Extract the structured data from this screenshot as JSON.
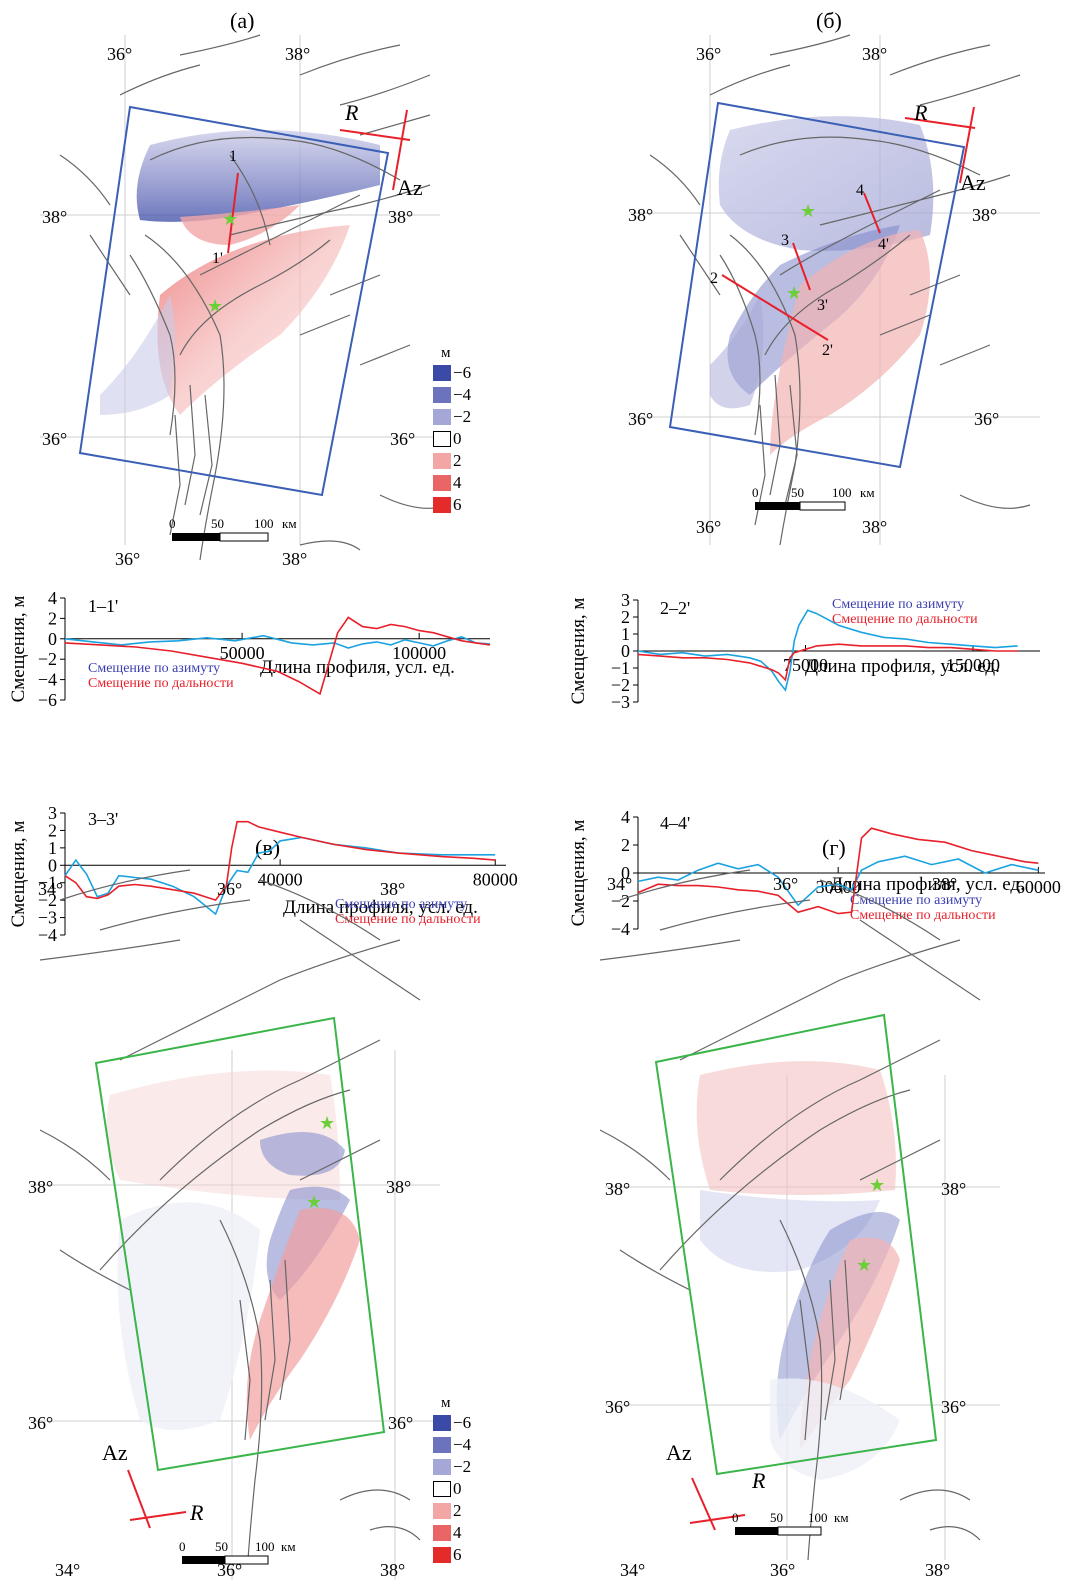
{
  "panel_labels": {
    "a": "(а)",
    "b": "(б)",
    "v": "(в)",
    "g": "(г)"
  },
  "legend": {
    "unit": "м",
    "entries": [
      {
        "label": "−6",
        "color": "#3a4aa6"
      },
      {
        "label": "−4",
        "color": "#6b73bc"
      },
      {
        "label": "−2",
        "color": "#a5a8d6"
      },
      {
        "label": "0",
        "color": "#ffffff"
      },
      {
        "label": "2",
        "color": "#f3a6a6"
      },
      {
        "label": "4",
        "color": "#ea6565"
      },
      {
        "label": "6",
        "color": "#e52a2a"
      }
    ]
  },
  "maps": {
    "a": {
      "lon_labels": [
        "36°",
        "38°"
      ],
      "lat_labels": [
        "38°",
        "36°"
      ],
      "scale": {
        "ticks": [
          "0",
          "50",
          "100"
        ],
        "unit": "км"
      },
      "R": "R",
      "Az": "Az",
      "profile_labels": [
        "1",
        "1'"
      ],
      "frame_color": "#3b5fb5"
    },
    "b": {
      "lon_labels": [
        "36°",
        "38°"
      ],
      "lat_labels": [
        "38°",
        "36°"
      ],
      "scale": {
        "ticks": [
          "0",
          "50",
          "100"
        ],
        "unit": "км"
      },
      "R": "R",
      "Az": "Az",
      "profile_labels": [
        "2",
        "2'",
        "3",
        "3'",
        "4",
        "4'"
      ],
      "frame_color": "#3b5fb5"
    },
    "v": {
      "lon_labels": [
        "34°",
        "36°",
        "38°"
      ],
      "lat_labels": [
        "38°",
        "36°"
      ],
      "scale": {
        "ticks": [
          "0",
          "50",
          "100"
        ],
        "unit": "км"
      },
      "R": "R",
      "Az": "Az",
      "frame_color": "#3bb54a"
    },
    "g": {
      "lon_labels": [
        "34°",
        "36°",
        "38°"
      ],
      "lat_labels": [
        "38°",
        "36°"
      ],
      "scale": {
        "ticks": [
          "0",
          "50",
          "100"
        ],
        "unit": "км"
      },
      "R": "R",
      "Az": "Az",
      "frame_color": "#3bb54a"
    }
  },
  "chart_data": [
    {
      "type": "line",
      "profile": "1–1'",
      "xlabel": "Длина профиля, усл. ед.",
      "ylabel": "Смещения, м",
      "xlim": [
        0,
        120000
      ],
      "ylim": [
        -6,
        4
      ],
      "xticks": [
        50000,
        100000
      ],
      "yticks": [
        -6,
        -4,
        -2,
        0,
        2,
        4
      ],
      "legend_position": "bottom-left",
      "series": [
        {
          "name": "Смещение по азимуту",
          "color": "#1aa3e0",
          "x": [
            0,
            8000,
            16000,
            24000,
            32000,
            40000,
            48000,
            56000,
            64000,
            70000,
            76000,
            80000,
            84000,
            88000,
            92000,
            96000,
            100000,
            104000,
            108000,
            112000,
            116000,
            120000
          ],
          "y": [
            0,
            -0.3,
            -0.6,
            -0.3,
            -0.2,
            0.1,
            -0.2,
            0.3,
            -0.4,
            -0.6,
            -0.4,
            -0.9,
            -0.5,
            -0.3,
            -0.6,
            -0.1,
            -0.4,
            -0.7,
            -0.2,
            0.2,
            -0.4,
            -0.5
          ]
        },
        {
          "name": "Смещение по дальности",
          "color": "#e8202a",
          "x": [
            0,
            10000,
            20000,
            30000,
            40000,
            50000,
            60000,
            66000,
            70000,
            72000,
            74000,
            77000,
            80000,
            84000,
            88000,
            92000,
            96000,
            100000,
            104000,
            108000,
            112000,
            116000,
            120000
          ],
          "y": [
            -0.4,
            -0.6,
            -0.8,
            -1.2,
            -1.8,
            -2.4,
            -3.2,
            -4.2,
            -5.0,
            -5.4,
            -3.0,
            0.6,
            2.1,
            1.2,
            1.0,
            1.4,
            1.2,
            0.8,
            0.6,
            0.2,
            -0.2,
            -0.4,
            -0.6
          ]
        }
      ]
    },
    {
      "type": "line",
      "profile": "2–2'",
      "xlabel": "Длина профиля, усл. ед.",
      "ylabel": "Смещения, м",
      "xlim": [
        0,
        180000
      ],
      "ylim": [
        -3,
        3
      ],
      "xticks": [
        75000,
        150000
      ],
      "yticks": [
        -3,
        -2,
        -1,
        0,
        1,
        2,
        3
      ],
      "legend_position": "top-right",
      "series": [
        {
          "name": "Смещение по азимуту",
          "color": "#1aa3e0",
          "x": [
            0,
            10000,
            20000,
            30000,
            40000,
            50000,
            55000,
            60000,
            63000,
            66000,
            68000,
            70000,
            72000,
            76000,
            80000,
            90000,
            100000,
            110000,
            120000,
            130000,
            140000,
            150000,
            160000,
            170000
          ],
          "y": [
            0,
            -0.2,
            -0.1,
            -0.3,
            -0.2,
            -0.4,
            -0.6,
            -1.2,
            -1.8,
            -2.3,
            -1.2,
            0.6,
            1.5,
            2.4,
            2.2,
            1.5,
            1.1,
            0.8,
            0.7,
            0.5,
            0.4,
            0.3,
            0.2,
            0.3
          ]
        },
        {
          "name": "Смещение по дальности",
          "color": "#e8202a",
          "x": [
            0,
            10000,
            20000,
            30000,
            40000,
            50000,
            55000,
            60000,
            63000,
            66000,
            68000,
            70000,
            75000,
            80000,
            90000,
            100000,
            110000,
            120000,
            130000,
            140000,
            150000,
            160000,
            170000
          ],
          "y": [
            -0.2,
            -0.3,
            -0.4,
            -0.4,
            -0.5,
            -0.7,
            -0.9,
            -1.1,
            -1.3,
            -1.7,
            -0.4,
            -0.1,
            0.1,
            0.3,
            0.4,
            0.3,
            0.3,
            0.3,
            0.2,
            0.2,
            0.1,
            0.0,
            0.0
          ]
        }
      ]
    },
    {
      "type": "line",
      "profile": "3–3'",
      "xlabel": "Длина профиля, усл. ед.",
      "ylabel": "Смещения, м",
      "xlim": [
        0,
        82000
      ],
      "ylim": [
        -4,
        3
      ],
      "xticks": [
        40000,
        80000
      ],
      "yticks": [
        -4,
        -3,
        -2,
        -1,
        0,
        1,
        2,
        3
      ],
      "legend_position": "bottom-right",
      "series": [
        {
          "name": "Смещение по азимуту",
          "color": "#1aa3e0",
          "x": [
            0,
            2000,
            4000,
            6000,
            8000,
            10000,
            13000,
            16000,
            20000,
            24000,
            28000,
            30000,
            32000,
            34000,
            36000,
            38000,
            40000,
            44000,
            50000,
            56000,
            62000,
            70000,
            76000,
            80000
          ],
          "y": [
            -0.6,
            0.3,
            -0.5,
            -1.8,
            -1.6,
            -0.6,
            -0.7,
            -0.8,
            -1.2,
            -1.8,
            -2.8,
            -1.2,
            -0.3,
            -0.4,
            0.7,
            0.8,
            1.4,
            1.6,
            1.2,
            1.0,
            0.7,
            0.6,
            0.6,
            0.6
          ]
        },
        {
          "name": "Смещение по дальности",
          "color": "#e8202a",
          "x": [
            0,
            2000,
            4000,
            6000,
            8000,
            10000,
            13000,
            16000,
            20000,
            24000,
            28000,
            30000,
            31000,
            32000,
            34000,
            36000,
            40000,
            44000,
            50000,
            56000,
            62000,
            70000,
            76000,
            80000
          ],
          "y": [
            -0.6,
            -1.0,
            -1.8,
            -1.9,
            -1.7,
            -1.2,
            -1.1,
            -1.2,
            -1.4,
            -1.6,
            -2.0,
            -1.2,
            1.0,
            2.5,
            2.5,
            2.2,
            1.9,
            1.6,
            1.2,
            0.9,
            0.7,
            0.5,
            0.4,
            0.3
          ]
        }
      ]
    },
    {
      "type": "line",
      "profile": "4–4'",
      "xlabel": "Длина профиля, усл. ед.",
      "ylabel": "Смещения, м",
      "xlim": [
        0,
        61000
      ],
      "ylim": [
        -4,
        4
      ],
      "xticks": [
        30000,
        60000
      ],
      "yticks": [
        -4,
        -2,
        0,
        2,
        4
      ],
      "legend_position": "bottom-right",
      "series": [
        {
          "name": "Смещение по азимуту",
          "color": "#1aa3e0",
          "x": [
            0,
            3000,
            6000,
            9000,
            12000,
            15000,
            18000,
            21000,
            24000,
            27000,
            30000,
            32000,
            33500,
            36000,
            40000,
            44000,
            48000,
            52000,
            56000,
            60000
          ],
          "y": [
            -0.6,
            -0.3,
            -0.5,
            0.2,
            0.7,
            0.3,
            0.6,
            -0.3,
            -2.3,
            -1.0,
            -0.8,
            -1.2,
            0.2,
            0.8,
            1.2,
            0.6,
            1.0,
            0.0,
            0.6,
            0.2
          ]
        },
        {
          "name": "Смещение по дальности",
          "color": "#e8202a",
          "x": [
            0,
            3000,
            6000,
            9000,
            12000,
            15000,
            18000,
            21000,
            24000,
            27000,
            30000,
            32000,
            33500,
            35000,
            38000,
            42000,
            46000,
            50000,
            54000,
            58000,
            60000
          ],
          "y": [
            -1.4,
            -0.8,
            -0.9,
            -0.9,
            -1.0,
            -1.2,
            -1.3,
            -1.6,
            -2.8,
            -2.4,
            -2.9,
            -2.8,
            2.5,
            3.2,
            2.8,
            2.4,
            2.2,
            1.6,
            1.2,
            0.8,
            0.7
          ]
        }
      ]
    }
  ]
}
